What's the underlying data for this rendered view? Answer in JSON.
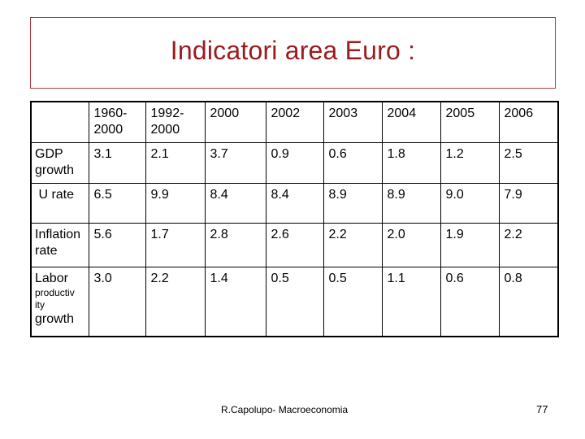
{
  "title": "Indicatori area Euro :",
  "table": {
    "headers": [
      "",
      "1960-\n2000",
      "1992-\n2000",
      "2000",
      "2002",
      "2003",
      "2004",
      "2005",
      "2006"
    ],
    "rows": [
      {
        "label": "GDP growth",
        "values": [
          "3.1",
          "2.1",
          "3.7",
          "0.9",
          "0.6",
          "1.8",
          "1.2",
          "2.5"
        ]
      },
      {
        "label": " U rate",
        "values": [
          "6.5",
          "9.9",
          "8.4",
          "8.4",
          "8.9",
          "8.9",
          "9.0",
          "7.9"
        ]
      },
      {
        "label": "Inflation rate",
        "values": [
          "5.6",
          "1.7",
          "2.8",
          "2.6",
          "2.2",
          "2.0",
          "1.9",
          "2.2"
        ]
      },
      {
        "label_parts": [
          "Labor",
          "productiv ity",
          "growth"
        ],
        "values": [
          "3.0",
          "2.2",
          "1.4",
          "0.5",
          "0.5",
          "1.1",
          "0.6",
          "0.8"
        ]
      }
    ]
  },
  "footer": "R.Capolupo- Macroeconomia",
  "page_number": "77"
}
